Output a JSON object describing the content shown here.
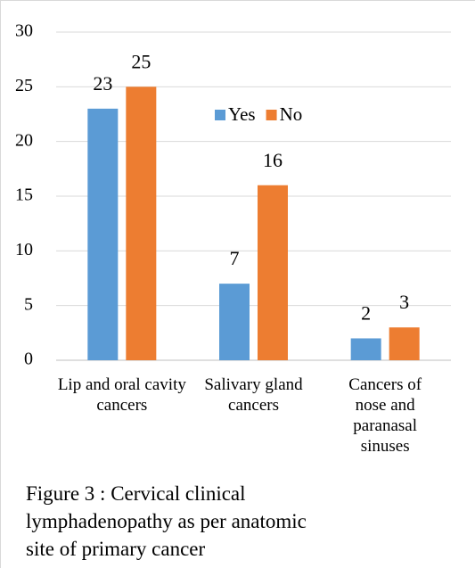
{
  "chart_data": {
    "type": "bar",
    "categories": [
      "Lip and oral cavity cancers",
      "Salivary gland cancers",
      "Cancers of nose and paranasal sinuses"
    ],
    "series": [
      {
        "name": "Yes",
        "color": "#5b9bd5",
        "values": [
          23,
          7,
          2
        ]
      },
      {
        "name": "No",
        "color": "#ed7d31",
        "values": [
          25,
          16,
          3
        ]
      }
    ],
    "ylim": [
      0,
      30
    ],
    "yticks": [
      0,
      5,
      10,
      15,
      20,
      25,
      30
    ],
    "grid": true,
    "legend": "top",
    "caption": "Figure 3 : Cervical clinical lymphadenopathy as per anatomic site of primary cancer"
  }
}
